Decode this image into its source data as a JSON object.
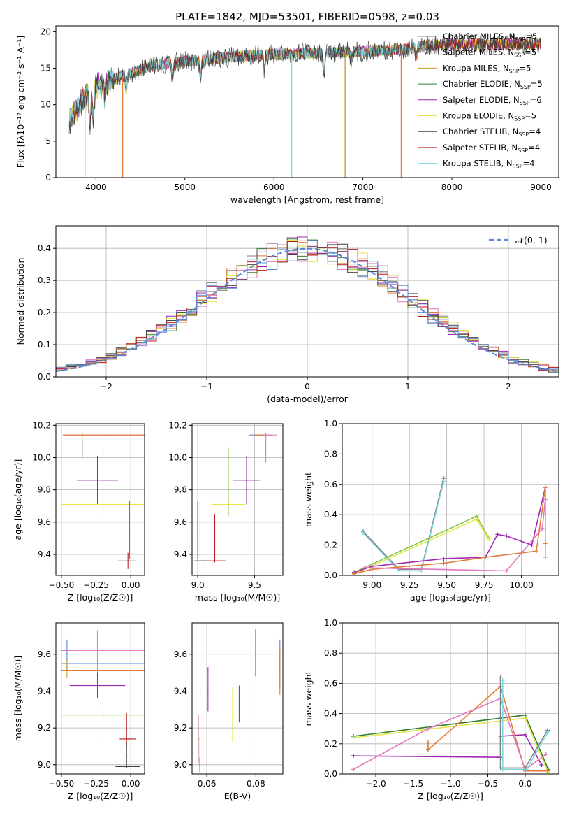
{
  "figure": {
    "title": "PLATE=1842, MJD=53501, FIBERID=0598, z=0.03"
  },
  "model_colors": [
    "#7f7f7f",
    "#e377c2",
    "#c59a2a",
    "#2e7d32",
    "#9c27b0",
    "#e6e64a",
    "#444444",
    "#b71c1c",
    "#7fd8e0"
  ],
  "chart_data": [
    {
      "type": "line",
      "name": "spectrum",
      "xlabel": "wavelength [Angstrom, rest frame]",
      "ylabel": "Flux [fλ10⁻¹⁷ erg cm⁻² s⁻¹ A⁻¹]",
      "xlim": [
        3550,
        9200
      ],
      "ylim": [
        0,
        20.8
      ],
      "xticks": [
        4000,
        5000,
        6000,
        7000,
        8000,
        9000
      ],
      "yticks": [
        0,
        5,
        10,
        15,
        20
      ],
      "legend_position": "top-right",
      "legend": [
        {
          "text": "Chabrier MILES, N",
          "sub": "SSP",
          "suffix": "=5"
        },
        {
          "text": "Salpeter MILES, N",
          "sub": "SSP",
          "suffix": "=5"
        },
        {
          "text": "Kroupa MILES, N",
          "sub": "SSP",
          "suffix": "=5"
        },
        {
          "text": "Chabrier ELODIE, N",
          "sub": "SSP",
          "suffix": "=5"
        },
        {
          "text": "Salpeter ELODIE, N",
          "sub": "SSP",
          "suffix": "=6"
        },
        {
          "text": "Kroupa ELODIE, N",
          "sub": "SSP",
          "suffix": "=5"
        },
        {
          "text": "Chabrier STELIB, N",
          "sub": "SSP",
          "suffix": "=4"
        },
        {
          "text": "Salpeter STELIB, N",
          "sub": "SSP",
          "suffix": "=4"
        },
        {
          "text": "Kroupa STELIB, N",
          "sub": "SSP",
          "suffix": "=4"
        }
      ],
      "continuum_anchors": [
        [
          3700,
          8.0
        ],
        [
          3850,
          10.5
        ],
        [
          4000,
          12.5
        ],
        [
          4300,
          14.0
        ],
        [
          4700,
          15.5
        ],
        [
          5200,
          16.2
        ],
        [
          5800,
          16.8
        ],
        [
          6500,
          17.1
        ],
        [
          7000,
          17.3
        ],
        [
          7500,
          17.6
        ],
        [
          7700,
          18.1
        ],
        [
          8000,
          18.3
        ],
        [
          9000,
          18.3
        ]
      ],
      "dropouts": [
        {
          "x": 3880,
          "y_bottom": 0,
          "series": 5
        },
        {
          "x": 4300,
          "y_bottom": 0,
          "series": 2
        },
        {
          "x": 6200,
          "y_bottom": 0,
          "series": 8
        },
        {
          "x": 6800,
          "y_bottom": 0,
          "series": 2
        },
        {
          "x": 7430,
          "y_bottom": 0,
          "series": 7
        }
      ]
    },
    {
      "type": "step",
      "name": "residuals",
      "xlabel": "(data-model)/error",
      "ylabel": "Normed distribution",
      "xlim": [
        -2.5,
        2.5
      ],
      "ylim": [
        0,
        0.47
      ],
      "xticks": [
        -2,
        -1,
        0,
        1,
        2
      ],
      "yticks": [
        0.0,
        0.1,
        0.2,
        0.3,
        0.4
      ],
      "legend_position": "top-right",
      "reference_curve": {
        "label": "𝒩(0, 1)",
        "color": "#5b8bd6",
        "mean": 0,
        "sigma": 1
      },
      "bin_width": 0.1
    },
    {
      "type": "errorbar",
      "name": "age-vs-metallicity",
      "xlabel": "Z [log₁₀(Z/Z☉)]",
      "ylabel": "age  [log₁₀(age/yr)]",
      "xlim": [
        -0.54,
        0.1
      ],
      "ylim": [
        9.27,
        10.21
      ],
      "xticks": [
        -0.5,
        -0.25,
        0.0
      ],
      "yticks": [
        9.4,
        9.6,
        9.8,
        10.0,
        10.2
      ],
      "points": [
        {
          "x": -0.03,
          "y": 9.36,
          "xerr": 0.06,
          "yerr": 0.0,
          "color": "#7f7f7f"
        },
        {
          "x": -0.17,
          "y": 10.14,
          "xerr": 0.32,
          "yerr": 0.0,
          "color": "#e377c2"
        },
        {
          "x": -0.17,
          "y": 10.14,
          "xerr": 0.32,
          "yerr": 0.0,
          "color": "#e07b39"
        },
        {
          "x": -0.35,
          "y": 10.08,
          "xerr": 0.0,
          "yerr": 0.08,
          "color": "#c59a2a"
        },
        {
          "x": -0.24,
          "y": 9.86,
          "xerr": 0.15,
          "yerr": 0.15,
          "color": "#9c27b0"
        },
        {
          "x": -0.2,
          "y": 9.71,
          "xerr": 0.3,
          "yerr": 0.0,
          "color": "#e6e64a"
        },
        {
          "x": -0.2,
          "y": 9.85,
          "xerr": 0.0,
          "yerr": 0.21,
          "color": "#8bc34a"
        },
        {
          "x": -0.01,
          "y": 9.36,
          "xerr": 0.05,
          "yerr": 0.0,
          "color": "#7fd8e0"
        },
        {
          "x": -0.02,
          "y": 9.36,
          "xerr": 0.0,
          "yerr": 0.05,
          "color": "#b71c1c"
        },
        {
          "x": -0.01,
          "y": 9.55,
          "xerr": 0.0,
          "yerr": 0.18,
          "color": "#444444"
        },
        {
          "x": -0.35,
          "y": 10.05,
          "xerr": 0.0,
          "yerr": 0.05,
          "color": "#5b8bd6"
        }
      ]
    },
    {
      "type": "errorbar",
      "name": "age-vs-mass",
      "xlabel": "mass [log₁₀(M/M☉)]",
      "ylabel": "",
      "xlim": [
        8.95,
        9.75
      ],
      "ylim": [
        9.27,
        10.21
      ],
      "xticks": [
        9.0,
        9.5
      ],
      "yticks": [
        9.4,
        9.6,
        9.8,
        10.0,
        10.2
      ],
      "points": [
        {
          "x": 9.55,
          "y": 10.14,
          "xerr": 0.1,
          "yerr": 0.0,
          "color": "#5b8bd6"
        },
        {
          "x": 9.6,
          "y": 10.14,
          "xerr": 0.1,
          "yerr": 0.0,
          "color": "#e377c2"
        },
        {
          "x": 9.55,
          "y": 10.14,
          "xerr": 0.05,
          "yerr": 0.0,
          "color": "#e07b39"
        },
        {
          "x": 9.6,
          "y": 10.06,
          "xerr": 0.0,
          "yerr": 0.09,
          "color": "#e377c2"
        },
        {
          "x": 9.43,
          "y": 9.86,
          "xerr": 0.12,
          "yerr": 0.15,
          "color": "#9c27b0"
        },
        {
          "x": 9.27,
          "y": 9.71,
          "xerr": 0.15,
          "yerr": 0.0,
          "color": "#e6e64a"
        },
        {
          "x": 9.27,
          "y": 9.85,
          "xerr": 0.0,
          "yerr": 0.21,
          "color": "#8bc34a"
        },
        {
          "x": 9.15,
          "y": 9.36,
          "xerr": 0.1,
          "yerr": 0.0,
          "color": "#b71c1c"
        },
        {
          "x": 9.15,
          "y": 9.5,
          "xerr": 0.0,
          "yerr": 0.15,
          "color": "#b71c1c"
        },
        {
          "x": 9.02,
          "y": 9.55,
          "xerr": 0.0,
          "yerr": 0.18,
          "color": "#7fd8e0"
        },
        {
          "x": 9.02,
          "y": 9.36,
          "xerr": 0.05,
          "yerr": 0.0,
          "color": "#444444"
        },
        {
          "x": 9.0,
          "y": 9.55,
          "xerr": 0.0,
          "yerr": 0.18,
          "color": "#444444"
        }
      ]
    },
    {
      "type": "line",
      "name": "mass-weight-vs-age",
      "xlabel": "age  [log₁₀(age/yr)]",
      "ylabel": "mass weight",
      "xlim": [
        8.8,
        10.25
      ],
      "ylim": [
        0,
        1.0
      ],
      "xticks": [
        9.0,
        9.25,
        9.5,
        9.75,
        10.0
      ],
      "yticks": [
        0.0,
        0.2,
        0.4,
        0.6,
        0.8,
        1.0
      ],
      "series": [
        {
          "color": "#7f7f7f",
          "points": [
            [
              8.94,
              0.29
            ],
            [
              9.18,
              0.04
            ],
            [
              9.33,
              0.04
            ],
            [
              9.48,
              0.64
            ]
          ]
        },
        {
          "color": "#7fd8e0",
          "points": [
            [
              8.94,
              0.28
            ],
            [
              9.18,
              0.03
            ],
            [
              9.33,
              0.03
            ],
            [
              9.48,
              0.62
            ]
          ]
        },
        {
          "color": "#8bc34a",
          "points": [
            [
              8.88,
              0.02
            ],
            [
              9.7,
              0.39
            ],
            [
              9.78,
              0.25
            ]
          ]
        },
        {
          "color": "#e6e64a",
          "points": [
            [
              8.88,
              0.01
            ],
            [
              9.7,
              0.37
            ],
            [
              9.78,
              0.24
            ]
          ]
        },
        {
          "color": "#9c27b0",
          "points": [
            [
              8.88,
              0.02
            ],
            [
              9.0,
              0.06
            ],
            [
              9.48,
              0.11
            ],
            [
              9.76,
              0.12
            ],
            [
              9.84,
              0.27
            ],
            [
              9.9,
              0.26
            ],
            [
              10.07,
              0.2
            ],
            [
              10.16,
              0.58
            ]
          ]
        },
        {
          "color": "#e07b39",
          "points": [
            [
              8.88,
              0.01
            ],
            [
              9.0,
              0.04
            ],
            [
              9.48,
              0.08
            ],
            [
              9.76,
              0.12
            ],
            [
              10.1,
              0.16
            ],
            [
              10.16,
              0.58
            ],
            [
              10.16,
              0.21
            ]
          ]
        },
        {
          "color": "#e377c2",
          "points": [
            [
              8.95,
              0.05
            ],
            [
              9.9,
              0.03
            ],
            [
              10.14,
              0.31
            ],
            [
              10.16,
              0.5
            ],
            [
              10.16,
              0.12
            ]
          ]
        }
      ]
    },
    {
      "type": "errorbar",
      "name": "mass-vs-metallicity",
      "xlabel": "Z [log₁₀(Z/Z☉)]",
      "ylabel": "mass [log₁₀(M/M☉)]",
      "xlim": [
        -0.54,
        0.1
      ],
      "ylim": [
        8.95,
        9.77
      ],
      "xticks": [
        -0.5,
        -0.25,
        0.0
      ],
      "yticks": [
        9.0,
        9.2,
        9.4,
        9.6
      ],
      "points": [
        {
          "x": -0.2,
          "y": 9.62,
          "xerr": 0.3,
          "yerr": 0.0,
          "color": "#e377c2"
        },
        {
          "x": -0.2,
          "y": 9.55,
          "xerr": 0.3,
          "yerr": 0.0,
          "color": "#5b8bd6"
        },
        {
          "x": -0.2,
          "y": 9.51,
          "xerr": 0.3,
          "yerr": 0.0,
          "color": "#e07b39"
        },
        {
          "x": -0.24,
          "y": 9.6,
          "xerr": 0.0,
          "yerr": 0.13,
          "color": "#e377c2"
        },
        {
          "x": -0.46,
          "y": 9.6,
          "xerr": 0.0,
          "yerr": 0.08,
          "color": "#5b8bd6"
        },
        {
          "x": -0.46,
          "y": 9.52,
          "xerr": 0.0,
          "yerr": 0.05,
          "color": "#c59a2a"
        },
        {
          "x": -0.24,
          "y": 9.43,
          "xerr": 0.2,
          "yerr": 0.07,
          "color": "#9c27b0"
        },
        {
          "x": -0.2,
          "y": 9.27,
          "xerr": 0.3,
          "yerr": 0.0,
          "color": "#8bc34a"
        },
        {
          "x": -0.2,
          "y": 9.28,
          "xerr": 0.0,
          "yerr": 0.15,
          "color": "#e6e64a"
        },
        {
          "x": -0.02,
          "y": 9.14,
          "xerr": 0.06,
          "yerr": 0.0,
          "color": "#b71c1c"
        },
        {
          "x": -0.03,
          "y": 9.19,
          "xerr": 0.0,
          "yerr": 0.09,
          "color": "#b71c1c"
        },
        {
          "x": -0.03,
          "y": 9.02,
          "xerr": 0.09,
          "yerr": 0.0,
          "color": "#7fd8e0"
        },
        {
          "x": -0.02,
          "y": 8.99,
          "xerr": 0.09,
          "yerr": 0.0,
          "color": "#444444"
        },
        {
          "x": -0.03,
          "y": 9.05,
          "xerr": 0.0,
          "yerr": 0.07,
          "color": "#444444"
        }
      ]
    },
    {
      "type": "errorbar",
      "name": "mass-vs-ebv",
      "xlabel": "E(B-V)",
      "ylabel": "",
      "xlim": [
        0.054,
        0.091
      ],
      "ylim": [
        8.95,
        9.77
      ],
      "xticks": [
        0.06,
        0.08
      ],
      "yticks": [
        9.0,
        9.2,
        9.4,
        9.6
      ],
      "points": [
        {
          "x": 0.0798,
          "y": 9.61,
          "xerr": 0.0,
          "yerr": 0.13,
          "color": "#e377c2"
        },
        {
          "x": 0.0898,
          "y": 9.55,
          "xerr": 0.0,
          "yerr": 0.13,
          "color": "#5b8bd6"
        },
        {
          "x": 0.0898,
          "y": 9.51,
          "xerr": 0.0,
          "yerr": 0.13,
          "color": "#e07b39"
        },
        {
          "x": 0.0605,
          "y": 9.41,
          "xerr": 0.0,
          "yerr": 0.12,
          "color": "#9c27b0"
        },
        {
          "x": 0.0732,
          "y": 9.33,
          "xerr": 0.0,
          "yerr": 0.1,
          "color": "#2e7d32"
        },
        {
          "x": 0.0705,
          "y": 9.27,
          "xerr": 0.0,
          "yerr": 0.15,
          "color": "#e6e64a"
        },
        {
          "x": 0.0565,
          "y": 9.14,
          "xerr": 0.0,
          "yerr": 0.13,
          "color": "#b71c1c"
        },
        {
          "x": 0.0572,
          "y": 9.06,
          "xerr": 0.0,
          "yerr": 0.09,
          "color": "#7fd8e0"
        },
        {
          "x": 0.0572,
          "y": 9.0,
          "xerr": 0.0,
          "yerr": 0.04,
          "color": "#444444"
        }
      ]
    },
    {
      "type": "line",
      "name": "mass-weight-vs-metallicity",
      "xlabel": "Z [log₁₀(Z/Z☉)]",
      "ylabel": "mass weight",
      "xlim": [
        -2.45,
        0.45
      ],
      "ylim": [
        0,
        1.0
      ],
      "xticks": [
        -2.0,
        -1.5,
        -1.0,
        -0.5,
        0.0
      ],
      "yticks": [
        0.0,
        0.2,
        0.4,
        0.6,
        0.8,
        1.0
      ],
      "series": [
        {
          "color": "#2e7d32",
          "points": [
            [
              -2.3,
              0.25
            ],
            [
              0.0,
              0.39
            ],
            [
              0.31,
              0.03
            ]
          ]
        },
        {
          "color": "#e6e64a",
          "points": [
            [
              -2.3,
              0.24
            ],
            [
              0.0,
              0.37
            ],
            [
              0.31,
              0.01
            ]
          ]
        },
        {
          "color": "#9c27b0",
          "points": [
            [
              -2.3,
              0.12
            ],
            [
              -0.33,
              0.11
            ],
            [
              -0.33,
              0.25
            ],
            [
              0.0,
              0.26
            ],
            [
              0.22,
              0.06
            ]
          ]
        },
        {
          "color": "#e07b39",
          "points": [
            [
              -1.3,
              0.21
            ],
            [
              -1.3,
              0.16
            ],
            [
              -0.33,
              0.58
            ],
            [
              0.0,
              0.02
            ],
            [
              0.3,
              0.02
            ]
          ]
        },
        {
          "color": "#e377c2",
          "points": [
            [
              -2.3,
              0.03
            ],
            [
              -1.3,
              0.3
            ],
            [
              -0.33,
              0.5
            ],
            [
              0.0,
              0.03
            ],
            [
              0.28,
              0.13
            ]
          ]
        },
        {
          "color": "#7f7f7f",
          "points": [
            [
              -0.33,
              0.64
            ],
            [
              -0.33,
              0.04
            ],
            [
              0.0,
              0.04
            ],
            [
              0.3,
              0.29
            ]
          ]
        },
        {
          "color": "#7fd8e0",
          "points": [
            [
              -0.3,
              0.62
            ],
            [
              -0.3,
              0.03
            ],
            [
              0.02,
              0.03
            ],
            [
              0.31,
              0.28
            ]
          ]
        }
      ]
    }
  ]
}
